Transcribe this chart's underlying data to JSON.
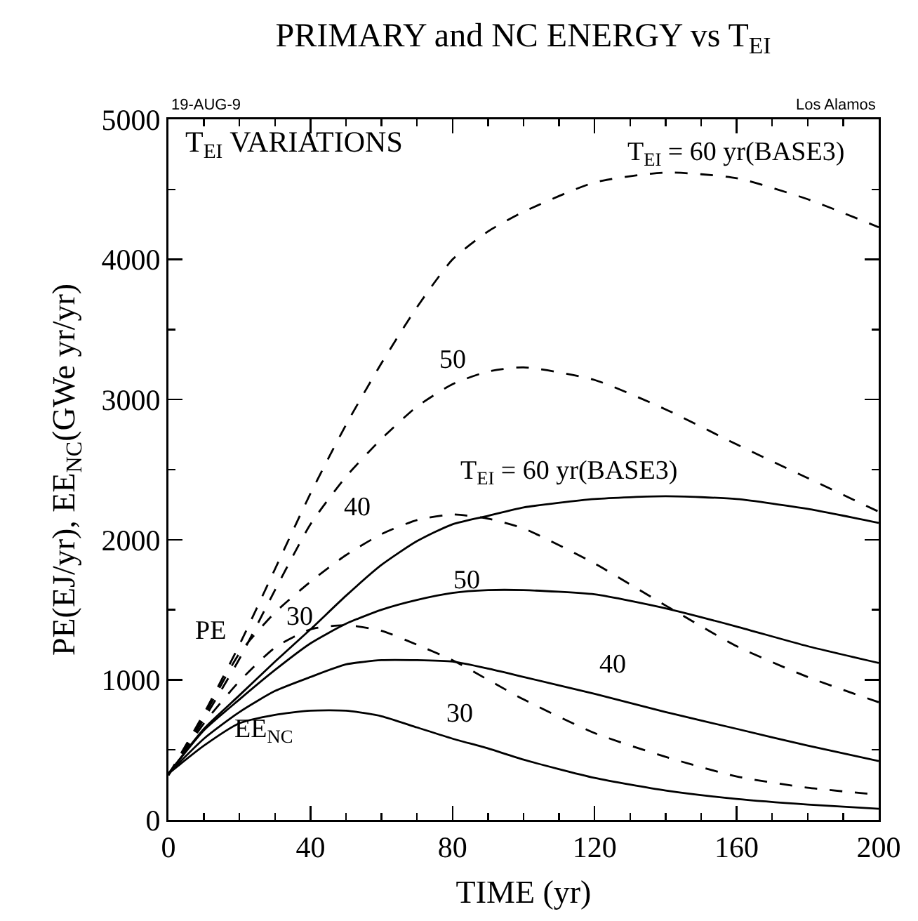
{
  "chart_data": {
    "type": "line",
    "title": "PRIMARY and NC ENERGY vs T$_{EI}$",
    "xlabel": "TIME (yr)",
    "ylabel": "PE(EJ/yr), EE$_{NC}$(GWe yr/yr)",
    "x": [
      0,
      10,
      20,
      30,
      40,
      50,
      60,
      70,
      80,
      90,
      100,
      120,
      140,
      160,
      180,
      200
    ],
    "series": [
      {
        "color": "#000000",
        "line_style": "dashed",
        "values": [
          320,
          760,
          1250,
          1790,
          2330,
          2820,
          3260,
          3660,
          4000,
          4200,
          4340,
          4550,
          4620,
          4580,
          4430,
          4230
        ]
      },
      {
        "color": "#000000",
        "line_style": "dashed",
        "values": [
          320,
          720,
          1150,
          1640,
          2110,
          2450,
          2720,
          2950,
          3110,
          3200,
          3230,
          3140,
          2930,
          2680,
          2440,
          2200
        ]
      },
      {
        "color": "#000000",
        "line_style": "dashed",
        "values": [
          320,
          740,
          1190,
          1480,
          1700,
          1890,
          2040,
          2140,
          2180,
          2150,
          2080,
          1830,
          1530,
          1240,
          1020,
          840
        ]
      },
      {
        "color": "#000000",
        "line_style": "dashed",
        "values": [
          320,
          690,
          990,
          1230,
          1360,
          1390,
          1350,
          1250,
          1140,
          1000,
          860,
          620,
          450,
          310,
          230,
          180
        ]
      },
      {
        "color": "#000000",
        "line_style": "solid",
        "values": [
          330,
          650,
          890,
          1130,
          1360,
          1600,
          1820,
          1990,
          2110,
          2170,
          2230,
          2290,
          2310,
          2290,
          2220,
          2120
        ]
      },
      {
        "color": "#000000",
        "line_style": "solid",
        "values": [
          330,
          640,
          860,
          1070,
          1260,
          1400,
          1500,
          1570,
          1620,
          1640,
          1640,
          1610,
          1510,
          1380,
          1240,
          1120
        ]
      },
      {
        "color": "#000000",
        "line_style": "solid",
        "values": [
          330,
          580,
          770,
          920,
          1020,
          1110,
          1140,
          1140,
          1130,
          1080,
          1020,
          900,
          770,
          650,
          530,
          420
        ]
      },
      {
        "color": "#000000",
        "line_style": "solid",
        "values": [
          330,
          530,
          690,
          750,
          780,
          780,
          740,
          660,
          580,
          510,
          430,
          300,
          210,
          150,
          110,
          80
        ]
      }
    ],
    "xlim": [
      0,
      200
    ],
    "xticks": [
      0,
      40,
      80,
      120,
      160,
      200
    ],
    "ylim": [
      0,
      5000
    ],
    "yticks": [
      0,
      1000,
      2000,
      3000,
      4000,
      5000
    ],
    "annotations": [
      "19-AUG-9",
      "Los Alamos",
      "T$_{EI}$ VARIATIONS",
      "T$_{EI}$ = 60 yr(BASE3)",
      "50",
      "40",
      "30",
      "PE",
      "T$_{EI}$ = 60 yr(BASE3)",
      "50",
      "40",
      "30",
      "EE$_{NC}$"
    ]
  }
}
